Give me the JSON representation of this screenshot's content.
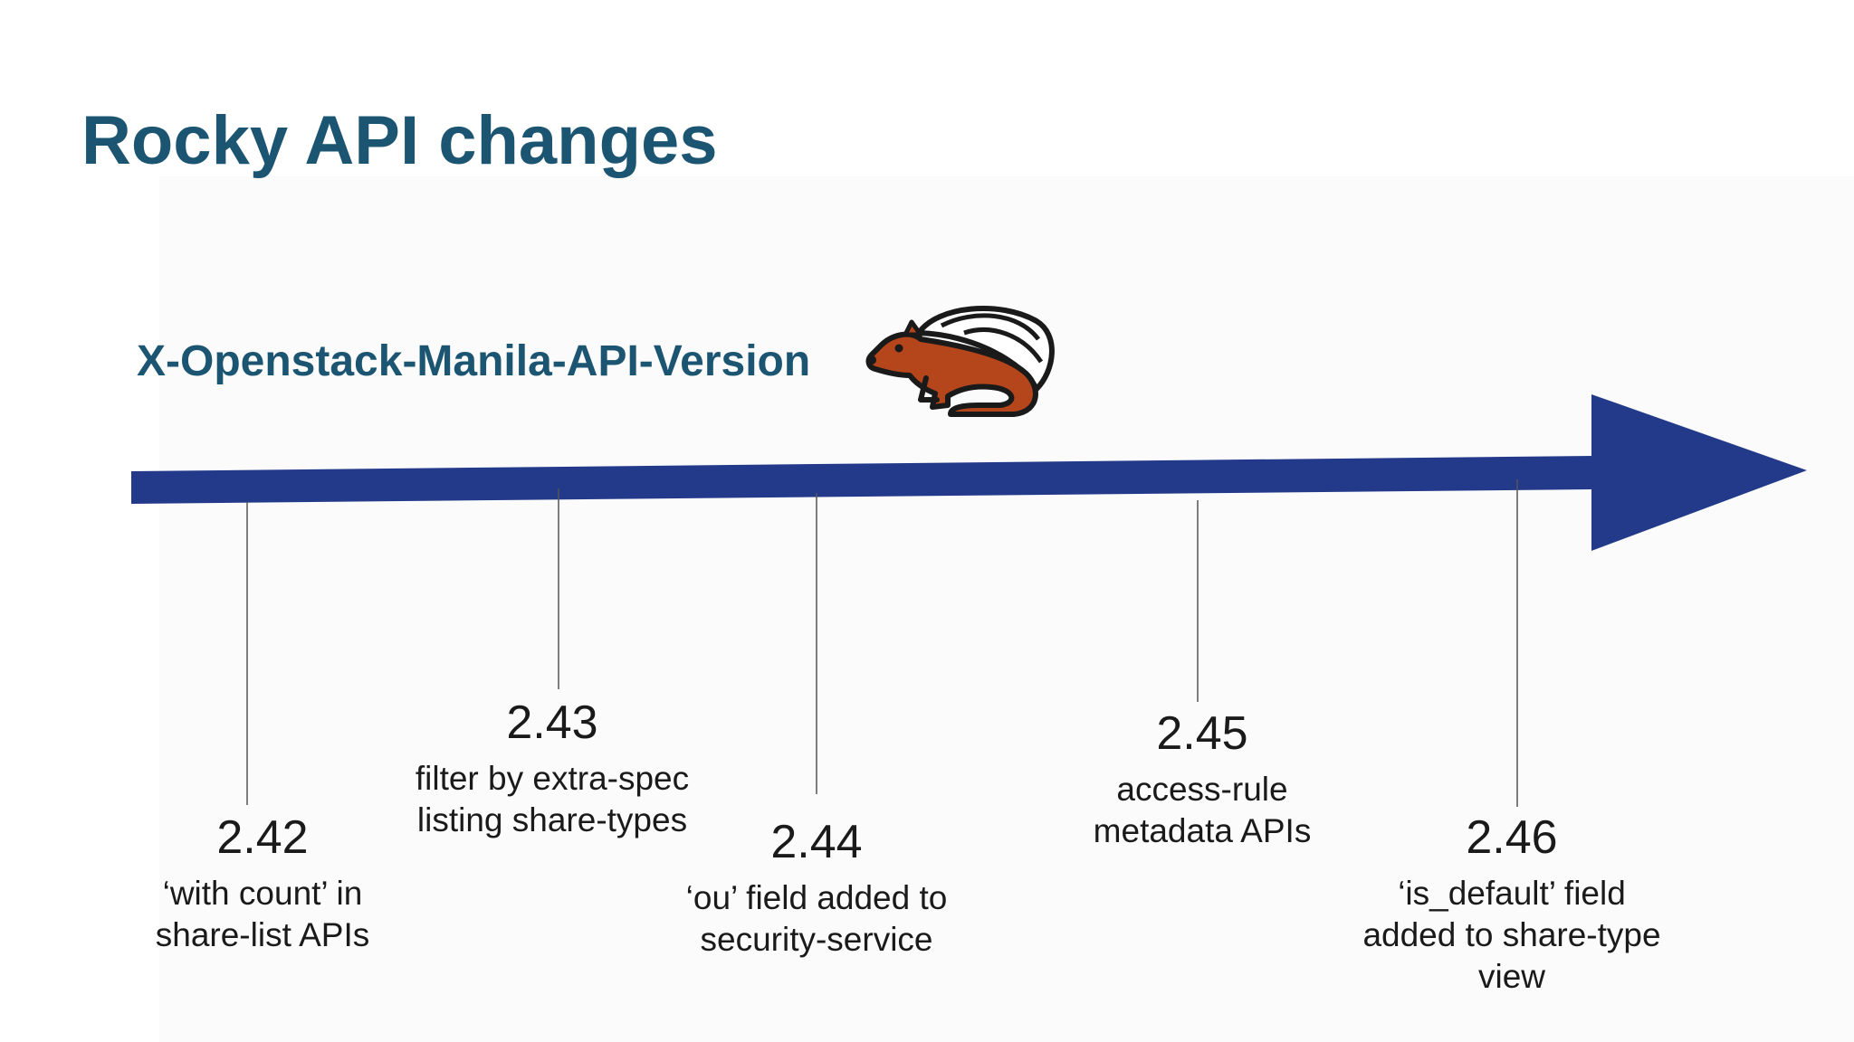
{
  "slide": {
    "title": "Rocky API changes",
    "subtitle": "X-Openstack-Manila-API-Version",
    "mascot_icon": "skunk-mascot-icon",
    "colors": {
      "title": "#1b5572",
      "arrow": "#233a8a",
      "text": "#1a1a1a",
      "mascot_body": "#b5451b"
    }
  },
  "milestones": [
    {
      "version": "2.42",
      "description": "‘with count’ in\nshare-list APIs"
    },
    {
      "version": "2.43",
      "description": "filter by extra-spec\nlisting share-types"
    },
    {
      "version": "2.44",
      "description": "‘ou’ field added to\nsecurity-service"
    },
    {
      "version": "2.45",
      "description": "access-rule\nmetadata APIs"
    },
    {
      "version": "2.46",
      "description": "‘is_default’ field\nadded to share-type\nview"
    }
  ]
}
